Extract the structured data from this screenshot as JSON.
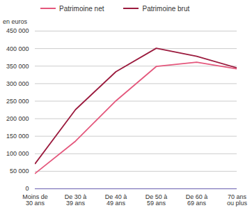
{
  "chart_data": {
    "type": "line",
    "y_label": "en euros",
    "categories": [
      "Moins de 30 ans",
      "De 30 à 39 ans",
      "De 40 à 49 ans",
      "De 50 à 59 ans",
      "De 60 à 69 ans",
      "70 ans ou plus"
    ],
    "series": [
      {
        "name": "Patrimoine net",
        "color": "#e4577c",
        "values": [
          44000,
          136000,
          251000,
          349000,
          361000,
          342000
        ]
      },
      {
        "name": "Patrimoine brut",
        "color": "#9b1b3e",
        "values": [
          72000,
          226000,
          334000,
          401000,
          378000,
          345000
        ]
      }
    ],
    "ylim": [
      0,
      450000
    ],
    "yticks": [
      0,
      {
        "value": 50000,
        "label": "50 000"
      },
      {
        "value": 100000,
        "label": "100 000"
      },
      {
        "value": 150000,
        "label": "150 000"
      },
      {
        "value": 200000,
        "label": "200 000"
      },
      {
        "value": 250000,
        "label": "250 000"
      },
      {
        "value": 300000,
        "label": "300 000"
      },
      {
        "value": 350000,
        "label": "350 000"
      },
      {
        "value": 400000,
        "label": "400 000"
      },
      {
        "value": 450000,
        "label": "450 000"
      }
    ],
    "grid": true,
    "legend": "top"
  }
}
